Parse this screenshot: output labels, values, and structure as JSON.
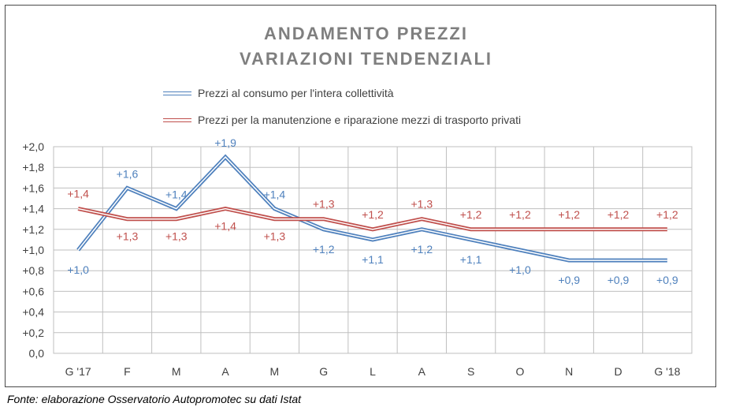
{
  "chart_data": {
    "type": "line",
    "title": [
      "ANDAMENTO PREZZI",
      "VARIAZIONI TENDENZIALI"
    ],
    "categories": [
      "G '17",
      "F",
      "M",
      "A",
      "M",
      "G",
      "L",
      "A",
      "S",
      "O",
      "N",
      "D",
      "G '18"
    ],
    "ylim": [
      0,
      2.0
    ],
    "yticks": [
      "0,0",
      "+0,2",
      "+0,4",
      "+0,6",
      "+0,8",
      "+1,0",
      "+1,2",
      "+1,4",
      "+1,6",
      "+1,8",
      "+2,0"
    ],
    "grid": true,
    "series": [
      {
        "name": "Prezzi al consumo per l'intera collettività",
        "color": "#4f81bd",
        "values": [
          1.0,
          1.6,
          1.4,
          1.9,
          1.4,
          1.2,
          1.1,
          1.2,
          1.1,
          1.0,
          0.9,
          0.9,
          0.9
        ],
        "labels": [
          "+1,0",
          "+1,6",
          "+1,4",
          "+1,9",
          "+1,4",
          "+1,2",
          "+1,1",
          "+1,2",
          "+1,1",
          "+1,0",
          "+0,9",
          "+0,9",
          "+0,9"
        ]
      },
      {
        "name": "Prezzi per la manutenzione e riparazione mezzi di trasporto privati",
        "color": "#c0504d",
        "values": [
          1.4,
          1.3,
          1.3,
          1.4,
          1.3,
          1.3,
          1.2,
          1.3,
          1.2,
          1.2,
          1.2,
          1.2,
          1.2
        ],
        "labels": [
          "+1,4",
          "+1,3",
          "+1,3",
          "+1,4",
          "+1,3",
          "+1,3",
          "+1,2",
          "+1,3",
          "+1,2",
          "+1,2",
          "+1,2",
          "+1,2",
          "+1,2"
        ]
      }
    ]
  },
  "source": "Fonte: elaborazione Osservatorio Autopromotec su dati Istat"
}
